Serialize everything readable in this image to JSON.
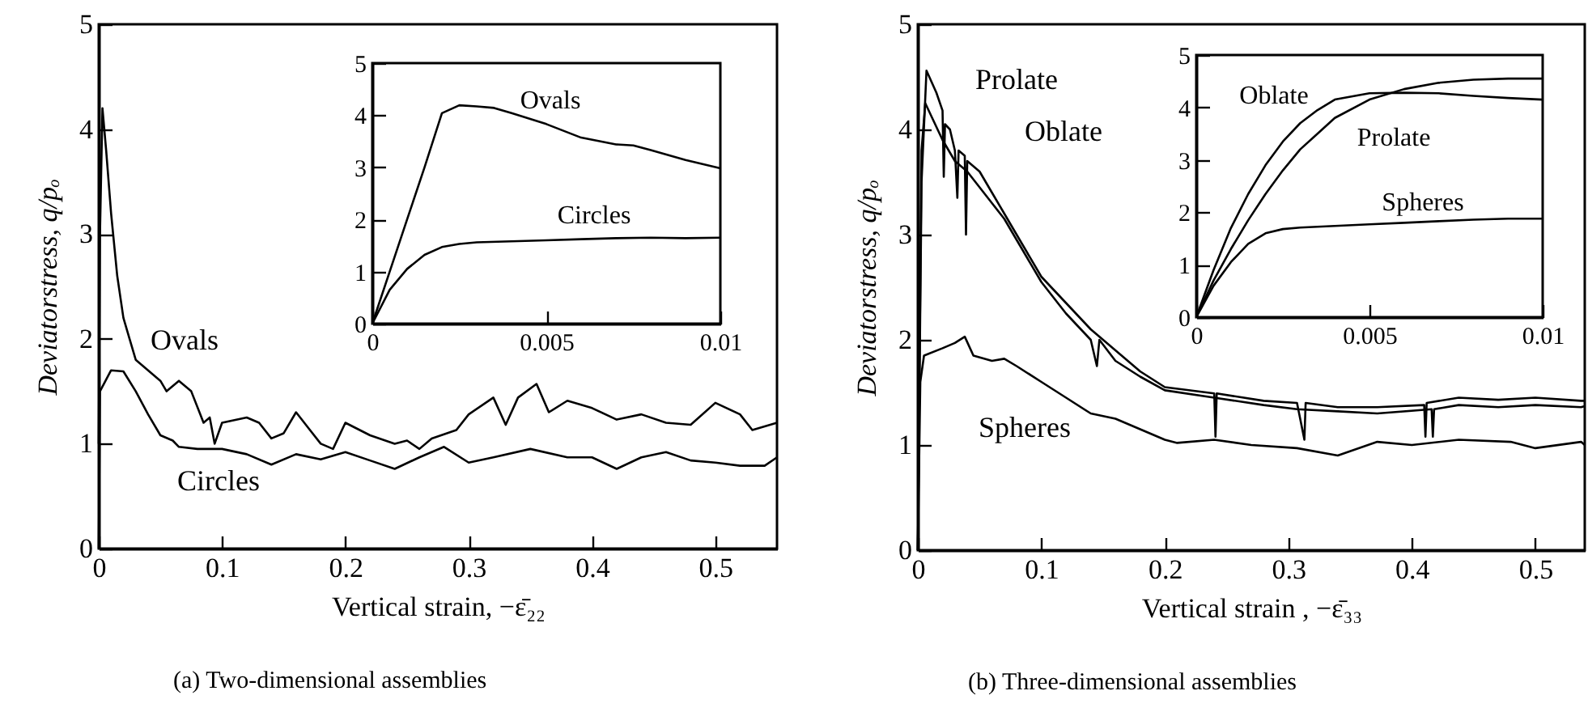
{
  "chart_data": [
    {
      "type": "line",
      "title": "(a) Two-dimensional assemblies",
      "xlabel": "Vertical strain,  −ε̄₂₂",
      "ylabel": "Deviatorstress, q/pₒ",
      "xlim": [
        0,
        0.55
      ],
      "ylim": [
        0,
        5
      ],
      "xticks": [
        0,
        0.1,
        0.2,
        0.3,
        0.4,
        0.5
      ],
      "yticks": [
        0,
        1,
        2,
        3,
        4,
        5
      ],
      "series": [
        {
          "color": "#000000",
          "x": [
            0,
            0.001,
            0.003,
            0.006,
            0.01,
            0.015,
            0.02,
            0.025,
            0.03,
            0.04,
            0.05,
            0.055,
            0.065,
            0.075,
            0.085,
            0.09,
            0.094,
            0.1,
            0.12,
            0.13,
            0.14,
            0.15,
            0.16,
            0.17,
            0.18,
            0.19,
            0.2,
            0.22,
            0.24,
            0.25,
            0.26,
            0.27,
            0.29,
            0.3,
            0.32,
            0.33,
            0.34,
            0.355,
            0.365,
            0.38,
            0.4,
            0.42,
            0.44,
            0.46,
            0.48,
            0.5,
            0.52,
            0.53,
            0.55
          ],
          "values": [
            1.0,
            3.0,
            4.2,
            3.8,
            3.2,
            2.6,
            2.2,
            2.0,
            1.8,
            1.7,
            1.6,
            1.5,
            1.6,
            1.5,
            1.2,
            1.25,
            1.0,
            1.2,
            1.25,
            1.2,
            1.05,
            1.1,
            1.3,
            1.15,
            1.0,
            0.95,
            1.2,
            1.08,
            1.0,
            1.03,
            0.95,
            1.05,
            1.13,
            1.28,
            1.44,
            1.18,
            1.44,
            1.57,
            1.3,
            1.41,
            1.34,
            1.23,
            1.28,
            1.2,
            1.18,
            1.39,
            1.28,
            1.13,
            1.2
          ]
        },
        {
          "color": "#000000",
          "x": [
            0,
            0.001,
            0.01,
            0.02,
            0.03,
            0.04,
            0.05,
            0.06,
            0.065,
            0.08,
            0.1,
            0.12,
            0.14,
            0.16,
            0.18,
            0.2,
            0.22,
            0.24,
            0.26,
            0.28,
            0.3,
            0.32,
            0.35,
            0.38,
            0.4,
            0.42,
            0.44,
            0.46,
            0.48,
            0.5,
            0.52,
            0.54,
            0.55
          ],
          "values": [
            0,
            1.5,
            1.7,
            1.69,
            1.5,
            1.28,
            1.08,
            1.03,
            0.97,
            0.95,
            0.95,
            0.9,
            0.8,
            0.9,
            0.85,
            0.92,
            0.84,
            0.76,
            0.87,
            0.97,
            0.82,
            0.87,
            0.95,
            0.87,
            0.87,
            0.76,
            0.87,
            0.92,
            0.84,
            0.82,
            0.79,
            0.79,
            0.87
          ]
        }
      ],
      "annotations": [
        "Ovals",
        "Circles"
      ]
    },
    {
      "type": "line",
      "xlim": [
        0,
        0.01
      ],
      "ylim": [
        0,
        5
      ],
      "xticks": [
        0,
        0.005,
        0.01
      ],
      "yticks": [
        0,
        1,
        2,
        3,
        4,
        5
      ],
      "series": [
        {
          "color": "#000000",
          "x": [
            0,
            0.0005,
            0.001,
            0.0015,
            0.002,
            0.0025,
            0.003,
            0.0035,
            0.004,
            0.005,
            0.006,
            0.007,
            0.0075,
            0.008,
            0.009,
            0.01
          ],
          "values": [
            0,
            1.0,
            2.0,
            3.0,
            4.04,
            4.19,
            4.17,
            4.14,
            4.04,
            3.83,
            3.57,
            3.44,
            3.42,
            3.33,
            3.14,
            2.98
          ]
        },
        {
          "color": "#000000",
          "x": [
            0,
            0.0005,
            0.001,
            0.0015,
            0.002,
            0.0025,
            0.003,
            0.004,
            0.005,
            0.006,
            0.007,
            0.008,
            0.009,
            0.01
          ],
          "values": [
            0,
            0.65,
            1.05,
            1.32,
            1.47,
            1.53,
            1.56,
            1.58,
            1.6,
            1.62,
            1.64,
            1.65,
            1.64,
            1.65
          ]
        }
      ],
      "annotations": [
        "Ovals",
        "Circles"
      ]
    },
    {
      "type": "line",
      "title": "(b) Three-dimensional assemblies",
      "xlabel": "Vertical strain , −ε̄₃₃",
      "ylabel": "Deviatorstress, q/pₒ",
      "xlim": [
        0,
        0.54
      ],
      "ylim": [
        0,
        5
      ],
      "xticks": [
        0,
        0.1,
        0.2,
        0.3,
        0.4,
        0.5
      ],
      "yticks": [
        0,
        1,
        2,
        3,
        4,
        5
      ],
      "series": [
        {
          "color": "#000000",
          "x": [
            0,
            0.003,
            0.007,
            0.015,
            0.02,
            0.021,
            0.022,
            0.026,
            0.03,
            0.032,
            0.033,
            0.038,
            0.039,
            0.04,
            0.05,
            0.06,
            0.07,
            0.08,
            0.1,
            0.12,
            0.14,
            0.16,
            0.18,
            0.2,
            0.24,
            0.241,
            0.242,
            0.28,
            0.307,
            0.313,
            0.314,
            0.34,
            0.372,
            0.41,
            0.411,
            0.412,
            0.438,
            0.47,
            0.5,
            0.537,
            0.54
          ],
          "values": [
            0,
            3.5,
            4.56,
            4.35,
            4.18,
            3.55,
            4.05,
            4.0,
            3.8,
            3.35,
            3.8,
            3.75,
            3.0,
            3.7,
            3.6,
            3.4,
            3.2,
            3.0,
            2.6,
            2.35,
            2.1,
            1.9,
            1.7,
            1.55,
            1.49,
            1.08,
            1.49,
            1.42,
            1.4,
            1.05,
            1.4,
            1.36,
            1.36,
            1.38,
            1.08,
            1.4,
            1.45,
            1.43,
            1.45,
            1.42,
            1.42
          ]
        },
        {
          "color": "#000000",
          "x": [
            0,
            0.003,
            0.006,
            0.02,
            0.03,
            0.04,
            0.05,
            0.06,
            0.07,
            0.08,
            0.1,
            0.12,
            0.14,
            0.145,
            0.147,
            0.16,
            0.18,
            0.2,
            0.24,
            0.28,
            0.307,
            0.34,
            0.372,
            0.416,
            0.417,
            0.418,
            0.438,
            0.47,
            0.5,
            0.537,
            0.54
          ],
          "values": [
            0,
            3.8,
            4.25,
            3.9,
            3.7,
            3.6,
            3.45,
            3.3,
            3.15,
            2.95,
            2.55,
            2.25,
            2.0,
            1.75,
            2.0,
            1.8,
            1.65,
            1.52,
            1.45,
            1.38,
            1.34,
            1.32,
            1.3,
            1.34,
            1.08,
            1.34,
            1.38,
            1.36,
            1.38,
            1.36,
            1.37
          ]
        },
        {
          "color": "#000000",
          "x": [
            0,
            0.002,
            0.005,
            0.02,
            0.03,
            0.038,
            0.045,
            0.06,
            0.07,
            0.08,
            0.1,
            0.12,
            0.14,
            0.16,
            0.18,
            0.2,
            0.21,
            0.24,
            0.27,
            0.307,
            0.34,
            0.372,
            0.4,
            0.438,
            0.48,
            0.5,
            0.537,
            0.54
          ],
          "values": [
            0,
            1.6,
            1.85,
            1.92,
            1.97,
            2.03,
            1.85,
            1.8,
            1.82,
            1.75,
            1.6,
            1.45,
            1.3,
            1.25,
            1.15,
            1.05,
            1.02,
            1.05,
            1.0,
            0.97,
            0.9,
            1.03,
            1.0,
            1.05,
            1.03,
            0.97,
            1.03,
            1.0
          ]
        }
      ],
      "annotations": [
        "Prolate",
        "Oblate",
        "Spheres"
      ]
    },
    {
      "type": "line",
      "xlim": [
        0,
        0.01
      ],
      "ylim": [
        0,
        5
      ],
      "xticks": [
        0,
        0.005,
        0.01
      ],
      "yticks": [
        0,
        1,
        2,
        3,
        4,
        5
      ],
      "series": [
        {
          "color": "#000000",
          "x": [
            0,
            0.0005,
            0.001,
            0.0015,
            0.002,
            0.0025,
            0.003,
            0.0035,
            0.004,
            0.005,
            0.006,
            0.007,
            0.008,
            0.009,
            0.01
          ],
          "values": [
            0,
            0.9,
            1.7,
            2.35,
            2.9,
            3.35,
            3.7,
            3.95,
            4.15,
            4.27,
            4.28,
            4.27,
            4.22,
            4.18,
            4.15
          ]
        },
        {
          "color": "#000000",
          "x": [
            0,
            0.0005,
            0.001,
            0.0015,
            0.002,
            0.0025,
            0.003,
            0.0035,
            0.004,
            0.005,
            0.006,
            0.007,
            0.008,
            0.009,
            0.01
          ],
          "values": [
            0,
            0.7,
            1.3,
            1.85,
            2.35,
            2.8,
            3.2,
            3.5,
            3.8,
            4.15,
            4.35,
            4.47,
            4.53,
            4.55,
            4.55
          ]
        },
        {
          "color": "#000000",
          "x": [
            0,
            0.0005,
            0.001,
            0.0015,
            0.002,
            0.0025,
            0.003,
            0.004,
            0.005,
            0.006,
            0.007,
            0.008,
            0.009,
            0.01
          ],
          "values": [
            0,
            0.6,
            1.05,
            1.4,
            1.6,
            1.68,
            1.71,
            1.74,
            1.77,
            1.8,
            1.83,
            1.86,
            1.88,
            1.88
          ]
        }
      ],
      "annotations": [
        "Oblate",
        "Prolate",
        "Spheres"
      ]
    }
  ]
}
